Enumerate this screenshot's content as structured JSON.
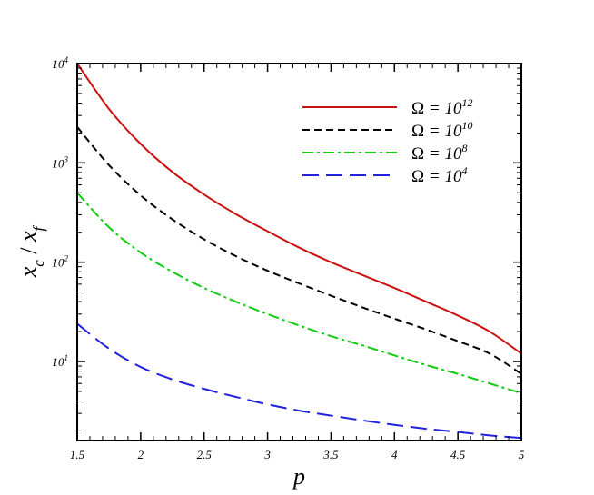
{
  "chart_data": {
    "type": "line",
    "xlabel": "p",
    "ylabel": {
      "numerator": "x",
      "numerator_sub": "c",
      "denominator": "x",
      "denominator_sub": "f"
    },
    "xlim": [
      1.5,
      5
    ],
    "ylim": [
      1.6,
      10000
    ],
    "yscale": "log",
    "xticks": [
      1.5,
      2,
      2.5,
      3,
      3.5,
      4,
      4.5,
      5
    ],
    "xtick_labels": [
      "1.5",
      "2",
      "2.5",
      "3",
      "3.5",
      "4",
      "4.5",
      "5"
    ],
    "yticks": [
      {
        "value": 10,
        "base": "10",
        "exp": "1"
      },
      {
        "value": 100,
        "base": "10",
        "exp": "2"
      },
      {
        "value": 1000,
        "base": "10",
        "exp": "3"
      },
      {
        "value": 10000,
        "base": "10",
        "exp": "4"
      }
    ],
    "legend_position": "top-right",
    "grid": false,
    "series": [
      {
        "name": "Ω = 10^12",
        "label_prefix": "Ω = 10",
        "label_exp": "12",
        "color": "#cc1111",
        "dash": "solid",
        "x": [
          1.5,
          1.75,
          2,
          2.25,
          2.5,
          2.75,
          3,
          3.25,
          3.5,
          3.75,
          4,
          4.25,
          4.5,
          4.75,
          5
        ],
        "values": [
          10000,
          3500,
          1550,
          810,
          480,
          305,
          205,
          140,
          100,
          74,
          55,
          40,
          29,
          20,
          12
        ]
      },
      {
        "name": "Ω = 10^10",
        "label_prefix": "Ω = 10",
        "label_exp": "10",
        "color": "#000000",
        "dash": "short-dash",
        "x": [
          1.5,
          1.75,
          2,
          2.25,
          2.5,
          2.75,
          3,
          3.25,
          3.5,
          3.75,
          4,
          4.25,
          4.5,
          4.75,
          5
        ],
        "values": [
          2300,
          950,
          470,
          270,
          170,
          115,
          82,
          61,
          46,
          35,
          27,
          21,
          16,
          12,
          7.5
        ]
      },
      {
        "name": "Ω = 10^8",
        "label_prefix": "Ω = 10",
        "label_exp": "8",
        "color": "#11cc11",
        "dash": "dash-dot",
        "x": [
          1.5,
          1.75,
          2,
          2.25,
          2.5,
          2.75,
          3,
          3.25,
          3.5,
          3.75,
          4,
          4.25,
          4.5,
          4.75,
          5
        ],
        "values": [
          500,
          225,
          125,
          80,
          55,
          40,
          30,
          23,
          18,
          14.5,
          11.5,
          9.2,
          7.5,
          6,
          4.8
        ]
      },
      {
        "name": "Ω = 10^4",
        "label_prefix": "Ω = 10",
        "label_exp": "4",
        "color": "#2222dd",
        "dash": "long-dash",
        "x": [
          1.5,
          1.75,
          2,
          2.25,
          2.5,
          2.75,
          3,
          3.25,
          3.5,
          3.75,
          4,
          4.25,
          4.5,
          4.75,
          5
        ],
        "values": [
          24,
          13.5,
          8.8,
          6.6,
          5.3,
          4.4,
          3.7,
          3.2,
          2.85,
          2.55,
          2.3,
          2.1,
          1.95,
          1.8,
          1.7
        ]
      }
    ]
  }
}
